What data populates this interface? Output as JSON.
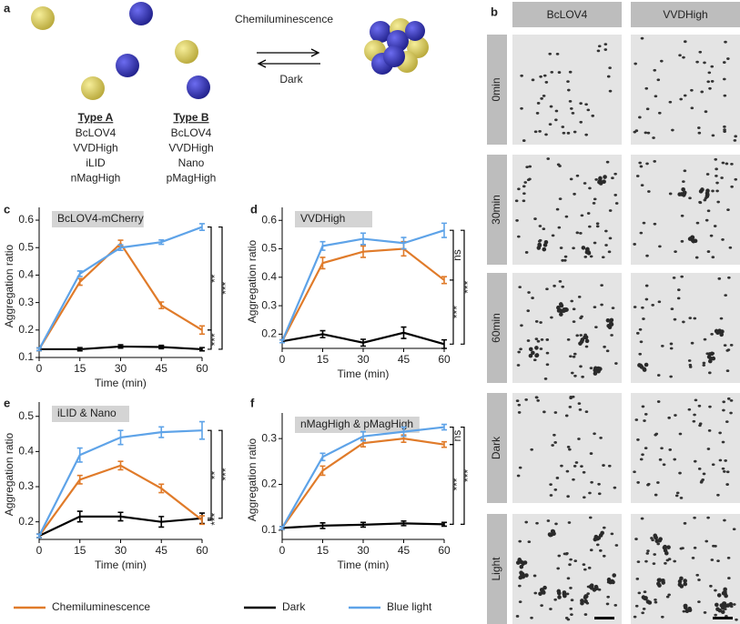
{
  "panel_a": {
    "label": "a",
    "forward": "Chemiluminescence",
    "reverse": "Dark",
    "types": [
      {
        "title": "Type A",
        "items": [
          "BcLOV4",
          "VVDHigh",
          "iLID",
          "nMagHigh"
        ]
      },
      {
        "title": "Type B",
        "items": [
          "BcLOV4",
          "VVDHigh",
          "Nano",
          "pMagHigh"
        ]
      }
    ]
  },
  "panel_b": {
    "label": "b",
    "columns": [
      "BcLOV4",
      "VVDHigh"
    ],
    "rows": [
      "0min",
      "30min",
      "60min",
      "Dark",
      "Light"
    ]
  },
  "chart_data": [
    {
      "type": "line",
      "label": "c",
      "title": "BcLOV4-mCherry",
      "x_label": "Time (min)",
      "y_label": "Aggregation ratio",
      "x": [
        0,
        15,
        30,
        45,
        60
      ],
      "xlim": [
        0,
        60
      ],
      "xticks": [
        0,
        15,
        30,
        45,
        60
      ],
      "ylim": [
        0.1,
        0.62
      ],
      "yticks": [
        0.1,
        0.2,
        0.3,
        0.4,
        0.5,
        0.6
      ],
      "grid": false,
      "series": [
        {
          "name": "Chemiluminescence",
          "color": "#e07b2a",
          "values": [
            0.13,
            0.375,
            0.515,
            0.29,
            0.2
          ],
          "errors": [
            0.005,
            0.012,
            0.012,
            0.012,
            0.015
          ]
        },
        {
          "name": "Dark",
          "color": "#000000",
          "values": [
            0.13,
            0.13,
            0.14,
            0.138,
            0.13
          ],
          "errors": [
            0.005,
            0.006,
            0.006,
            0.006,
            0.006
          ]
        },
        {
          "name": "Blue light",
          "color": "#5ea3e8",
          "values": [
            0.13,
            0.405,
            0.5,
            0.52,
            0.575
          ],
          "errors": [
            0.005,
            0.01,
            0.01,
            0.008,
            0.012
          ]
        }
      ],
      "annotations": [
        "**",
        "***",
        "***"
      ]
    },
    {
      "type": "line",
      "label": "d",
      "title": "VVDHigh",
      "x_label": "Time (min)",
      "y_label": "Aggregation ratio",
      "x": [
        0,
        15,
        30,
        45,
        60
      ],
      "xlim": [
        0,
        60
      ],
      "xticks": [
        0,
        15,
        30,
        45,
        60
      ],
      "ylim": [
        0.15,
        0.62
      ],
      "yticks": [
        0.2,
        0.3,
        0.4,
        0.5,
        0.6
      ],
      "grid": false,
      "series": [
        {
          "name": "Chemiluminescence",
          "color": "#e07b2a",
          "values": [
            0.175,
            0.45,
            0.49,
            0.5,
            0.39
          ],
          "errors": [
            0.005,
            0.02,
            0.02,
            0.025,
            0.012
          ]
        },
        {
          "name": "Dark",
          "color": "#000000",
          "values": [
            0.175,
            0.2,
            0.17,
            0.205,
            0.165
          ],
          "errors": [
            0.005,
            0.012,
            0.012,
            0.02,
            0.015
          ]
        },
        {
          "name": "Blue light",
          "color": "#5ea3e8",
          "values": [
            0.175,
            0.51,
            0.535,
            0.52,
            0.565
          ],
          "errors": [
            0.005,
            0.015,
            0.02,
            0.02,
            0.025
          ]
        }
      ],
      "annotations": [
        "ns",
        "***",
        "***"
      ]
    },
    {
      "type": "line",
      "label": "e",
      "title": "iLID & Nano",
      "x_label": "Time (min)",
      "y_label": "Aggregation ratio",
      "x": [
        0,
        15,
        30,
        45,
        60
      ],
      "xlim": [
        0,
        60
      ],
      "xticks": [
        0,
        15,
        30,
        45,
        60
      ],
      "ylim": [
        0.15,
        0.52
      ],
      "yticks": [
        0.2,
        0.3,
        0.4,
        0.5
      ],
      "grid": false,
      "series": [
        {
          "name": "Chemiluminescence",
          "color": "#e07b2a",
          "values": [
            0.16,
            0.32,
            0.36,
            0.295,
            0.205
          ],
          "errors": [
            0.005,
            0.012,
            0.012,
            0.012,
            0.012
          ]
        },
        {
          "name": "Dark",
          "color": "#000000",
          "values": [
            0.16,
            0.215,
            0.215,
            0.2,
            0.21
          ],
          "errors": [
            0.005,
            0.015,
            0.012,
            0.015,
            0.015
          ]
        },
        {
          "name": "Blue light",
          "color": "#5ea3e8",
          "values": [
            0.16,
            0.39,
            0.44,
            0.455,
            0.46
          ],
          "errors": [
            0.005,
            0.02,
            0.02,
            0.015,
            0.025
          ]
        }
      ],
      "annotations": [
        "**",
        "***",
        "***"
      ]
    },
    {
      "type": "line",
      "label": "f",
      "title": "nMagHigh & pMagHigh",
      "x_label": "Time (min)",
      "y_label": "Aggregation ratio",
      "x": [
        0,
        15,
        30,
        45,
        60
      ],
      "xlim": [
        0,
        60
      ],
      "xticks": [
        0,
        15,
        30,
        45,
        60
      ],
      "ylim": [
        0.08,
        0.34
      ],
      "yticks": [
        0.1,
        0.2,
        0.3
      ],
      "grid": false,
      "series": [
        {
          "name": "Chemiluminescence",
          "color": "#e07b2a",
          "values": [
            0.105,
            0.23,
            0.29,
            0.3,
            0.287
          ],
          "errors": [
            0.003,
            0.01,
            0.008,
            0.008,
            0.006
          ]
        },
        {
          "name": "Dark",
          "color": "#000000",
          "values": [
            0.105,
            0.11,
            0.112,
            0.115,
            0.113
          ],
          "errors": [
            0.003,
            0.006,
            0.005,
            0.005,
            0.004
          ]
        },
        {
          "name": "Blue light",
          "color": "#5ea3e8",
          "values": [
            0.105,
            0.26,
            0.305,
            0.315,
            0.325
          ],
          "errors": [
            0.003,
            0.008,
            0.01,
            0.01,
            0.006
          ]
        }
      ],
      "annotations": [
        "ns",
        "***",
        "***"
      ]
    }
  ]
}
